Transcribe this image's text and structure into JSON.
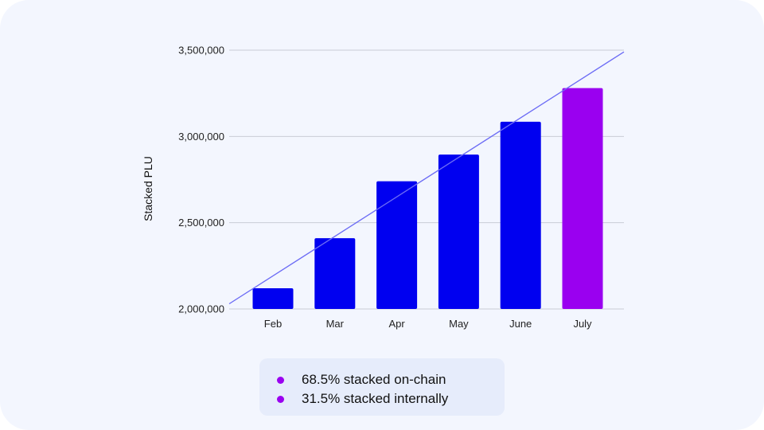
{
  "chart_data": {
    "type": "bar",
    "categories": [
      "Feb",
      "Mar",
      "Apr",
      "May",
      "June",
      "July"
    ],
    "values": [
      2120000,
      2410000,
      2740000,
      2895000,
      3085000,
      3280000
    ],
    "bar_colors": [
      "#0000f0",
      "#0000f0",
      "#0000f0",
      "#0000f0",
      "#0000f0",
      "#9a00f0"
    ],
    "trendline": {
      "color": "#6b6bf5",
      "from": 2030000,
      "to": 3490000
    },
    "ylabel": "Stacked PLU",
    "yticks": [
      2000000,
      2500000,
      3000000,
      3500000
    ],
    "ytick_labels": [
      "2,000,000",
      "2,500,000",
      "3,000,000",
      "3,500,000"
    ],
    "ylim": [
      2000000,
      3500000
    ],
    "grid": true
  },
  "legend": {
    "items": [
      {
        "label": "68.5% stacked on-chain",
        "color": "#9a00f0"
      },
      {
        "label": "31.5% stacked internally",
        "color": "#9a00f0"
      }
    ]
  }
}
